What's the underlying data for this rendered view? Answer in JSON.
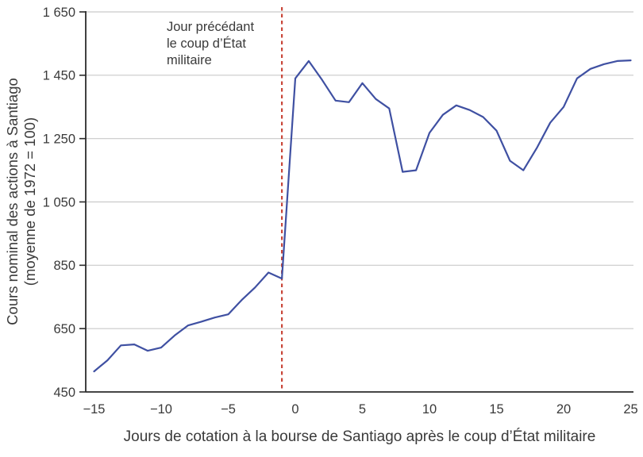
{
  "chart_data": {
    "type": "line",
    "title": "",
    "xlabel": "Jours de cotation à la bourse de Santiago après le coup d’État militaire",
    "ylabel_lines": [
      "Cours nominal des actions à Santiago",
      "(moyenne de 1972 = 100)"
    ],
    "series_name": "Cours nominal des actions à Santiago",
    "x": [
      -15,
      -14,
      -13,
      -12,
      -11,
      -10,
      -9,
      -8,
      -7,
      -6,
      -5,
      -4,
      -3,
      -2,
      -1,
      0,
      1,
      2,
      3,
      4,
      5,
      6,
      7,
      8,
      9,
      10,
      11,
      12,
      13,
      14,
      15,
      16,
      17,
      18,
      19,
      20,
      21,
      22,
      23,
      24,
      25
    ],
    "values": [
      515,
      550,
      597,
      600,
      580,
      590,
      628,
      660,
      672,
      685,
      695,
      740,
      780,
      827,
      808,
      1440,
      1495,
      1435,
      1370,
      1365,
      1425,
      1375,
      1345,
      1145,
      1150,
      1268,
      1325,
      1355,
      1340,
      1318,
      1275,
      1180,
      1150,
      1220,
      1300,
      1350,
      1440,
      1470,
      1485,
      1495,
      1497
    ],
    "xlim": [
      -15.8,
      25.3
    ],
    "ylim": [
      450,
      1650
    ],
    "xticks": [
      -15,
      -10,
      -5,
      0,
      5,
      10,
      15,
      20,
      25
    ],
    "xtick_labels": [
      "−15",
      "−10",
      "−5",
      "0",
      "5",
      "10",
      "15",
      "20",
      "25"
    ],
    "yticks": [
      450,
      650,
      850,
      1050,
      1250,
      1450,
      1650
    ],
    "ytick_labels": [
      "450",
      "650",
      "850",
      "1 050",
      "1 250",
      "1 450",
      "1 650"
    ],
    "grid": "horizontal",
    "legend": "none",
    "event_line": {
      "x": -1,
      "style": "dashed"
    },
    "annotation": {
      "lines": [
        "Jour précédant",
        "le coup d’État",
        "militaire"
      ],
      "anchor_x": -1
    },
    "colors": {
      "line": "#3f50a2",
      "event": "#c9473a",
      "grid": "#cacaca",
      "axis": "#2b2b2b",
      "text": "#3a3a3a"
    }
  }
}
